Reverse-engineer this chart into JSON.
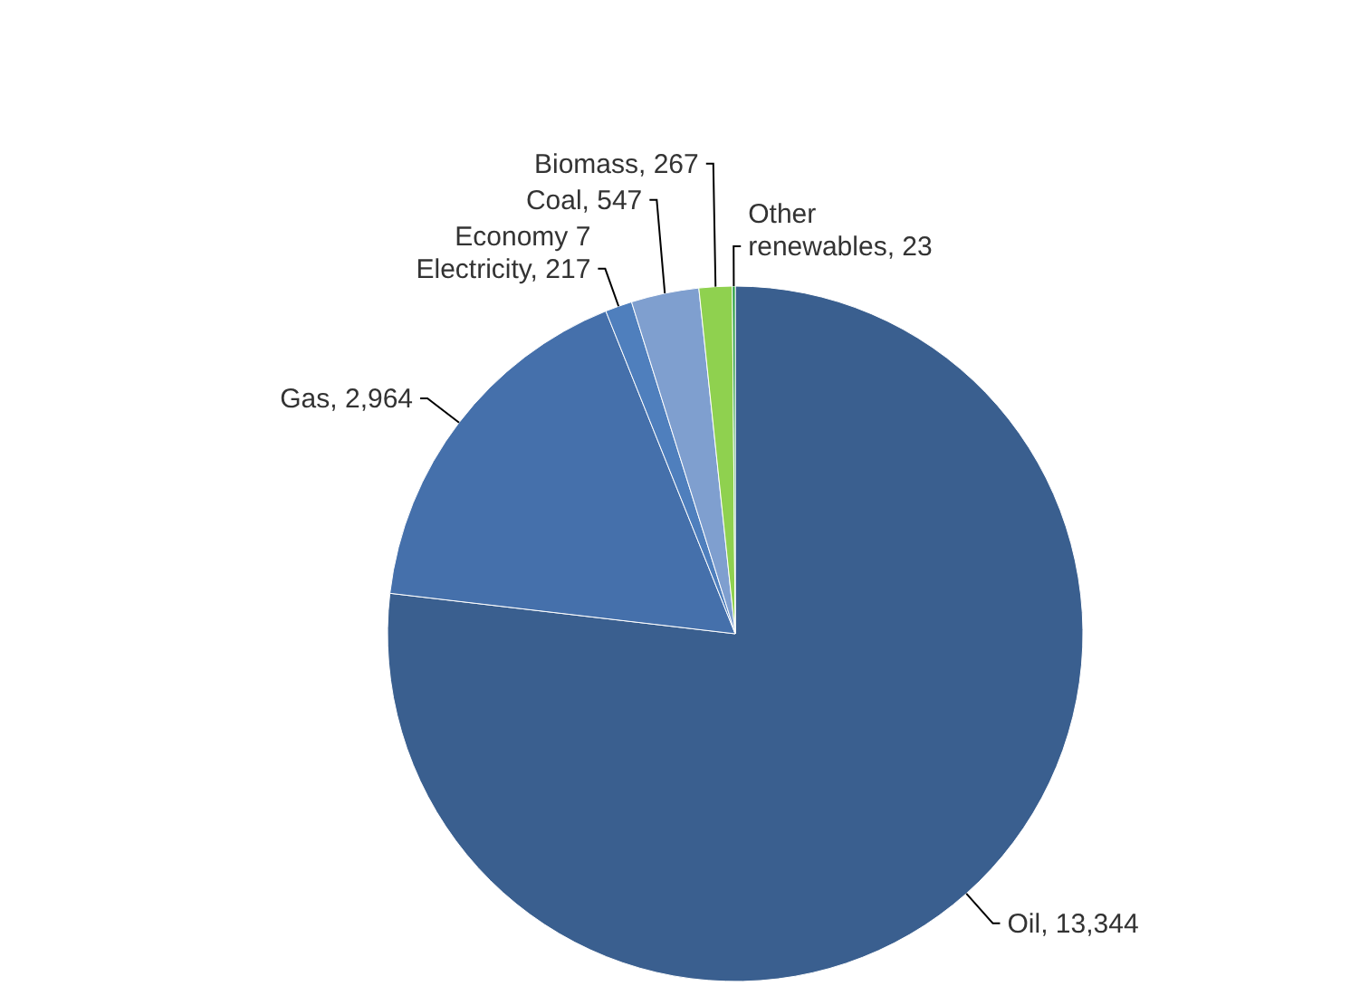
{
  "chart_data": {
    "type": "pie",
    "categories": [
      "Oil",
      "Gas",
      "Economy 7 Electricity",
      "Coal",
      "Biomass",
      "Other renewables"
    ],
    "values": [
      13344,
      2964,
      217,
      547,
      267,
      23
    ],
    "value_labels": [
      "13,344",
      "2,964",
      "217",
      "547",
      "267",
      "23"
    ],
    "colors": [
      "#3a5f8f",
      "#4570ab",
      "#4f7fbd",
      "#7f9fcf",
      "#8fd14f",
      "#1f9a3a"
    ]
  }
}
